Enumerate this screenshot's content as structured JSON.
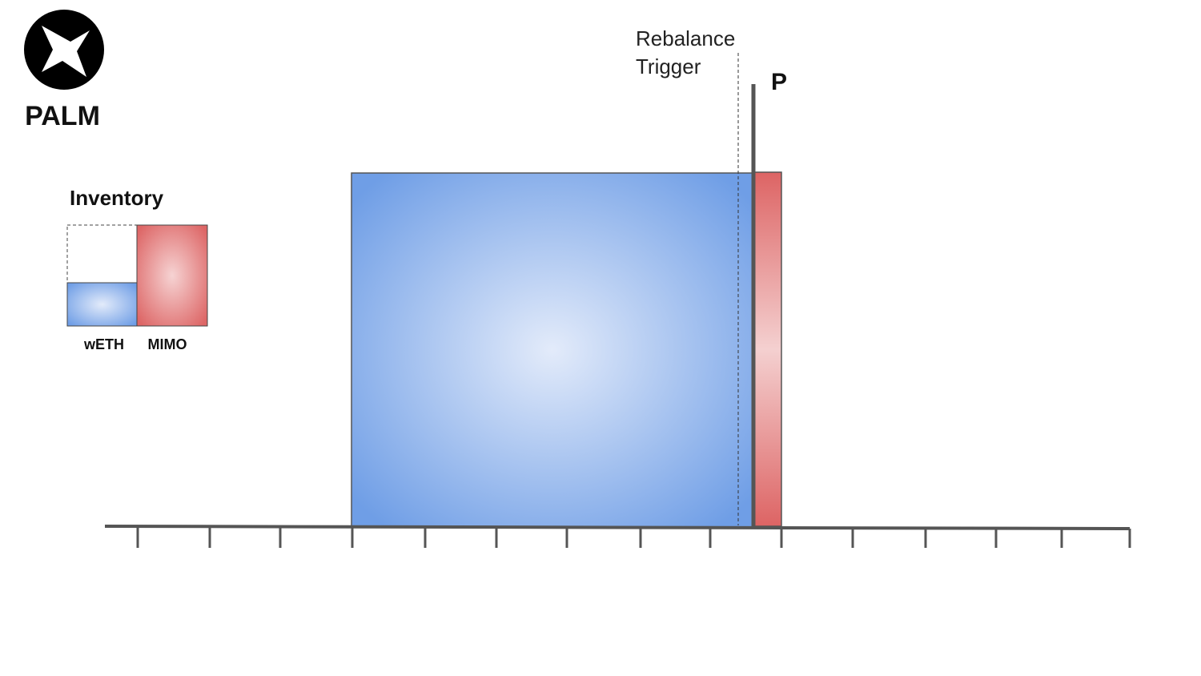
{
  "logo": {
    "label": "PALM"
  },
  "inventory": {
    "title": "Inventory",
    "items": [
      "wETH",
      "MIMO"
    ]
  },
  "trigger": {
    "lines": [
      "Rebalance",
      "Trigger"
    ]
  },
  "price": {
    "label": "P"
  }
}
